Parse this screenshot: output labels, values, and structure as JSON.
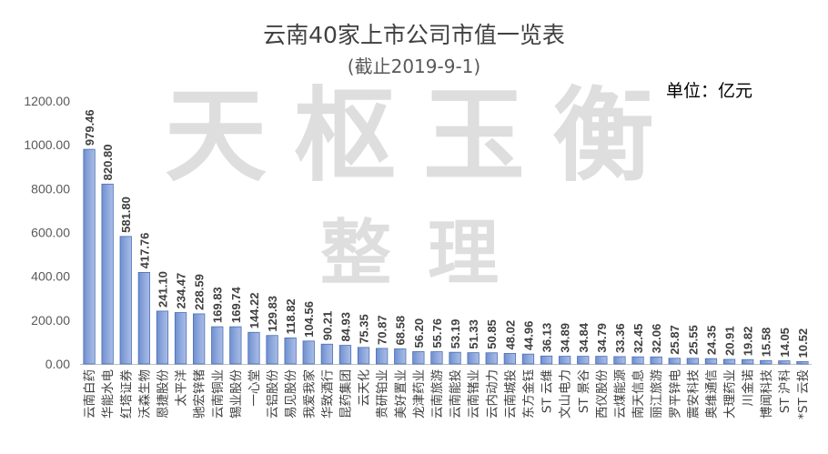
{
  "chart_data": {
    "type": "bar",
    "title": "云南40家上市公司市值一览表",
    "subtitle": "(截止2019-9-1)",
    "unit_label": "单位：亿元",
    "watermark": [
      "天枢玉衡",
      "整理"
    ],
    "ylim": [
      0,
      1200
    ],
    "yticks": [
      "0.00",
      "200.00",
      "400.00",
      "600.00",
      "800.00",
      "1000.00",
      "1200.00"
    ],
    "grid": false,
    "legend": "none",
    "bar_color": "#8fa8dc",
    "bar_edge_color": "#4a6fb5",
    "categories": [
      "云南白药",
      "华能水电",
      "红塔证券",
      "沃森生物",
      "恩捷股份",
      "太平洋",
      "驰宏锌锗",
      "云南铜业",
      "锡业股份",
      "一心堂",
      "云铝股份",
      "易见股份",
      "我爱我家",
      "华致酒行",
      "昆药集团",
      "云天化",
      "贵研铂业",
      "美好置业",
      "龙津药业",
      "云南旅游",
      "云南能投",
      "云南锗业",
      "云内动力",
      "云南城投",
      "东方金钰",
      "ST 云维",
      "文山电力",
      "ST 景谷",
      "西仪股份",
      "云煤能源",
      "南天信息",
      "丽江旅游",
      "罗平锌电",
      "震安科技",
      "奥维通信",
      "大理药业",
      "川金诺",
      "博闻科技",
      "ST 沪科",
      "*ST 云投"
    ],
    "values": [
      979.46,
      820.8,
      581.8,
      417.76,
      241.1,
      234.47,
      228.59,
      169.83,
      169.74,
      144.22,
      129.83,
      118.82,
      104.56,
      90.21,
      84.93,
      75.35,
      70.87,
      68.58,
      56.2,
      55.76,
      53.19,
      51.33,
      50.85,
      48.02,
      44.96,
      36.13,
      34.89,
      34.84,
      34.79,
      33.36,
      32.45,
      32.06,
      25.87,
      25.55,
      24.35,
      20.91,
      19.82,
      15.58,
      14.05,
      10.52
    ],
    "data_labels": [
      "979.46",
      "820.80",
      "581.80",
      "417.76",
      "241.10",
      "234.47",
      "228.59",
      "169.83",
      "169.74",
      "144.22",
      "129.83",
      "118.82",
      "104.56",
      "90.21",
      "84.93",
      "75.35",
      "70.87",
      "68.58",
      "56.20",
      "55.76",
      "53.19",
      "51.33",
      "50.85",
      "48.02",
      "44.96",
      "36.13",
      "34.89",
      "34.84",
      "34.79",
      "33.36",
      "32.45",
      "32.06",
      "25.87",
      "25.55",
      "24.35",
      "20.91",
      "19.82",
      "15.58",
      "14.05",
      "10.52"
    ]
  }
}
